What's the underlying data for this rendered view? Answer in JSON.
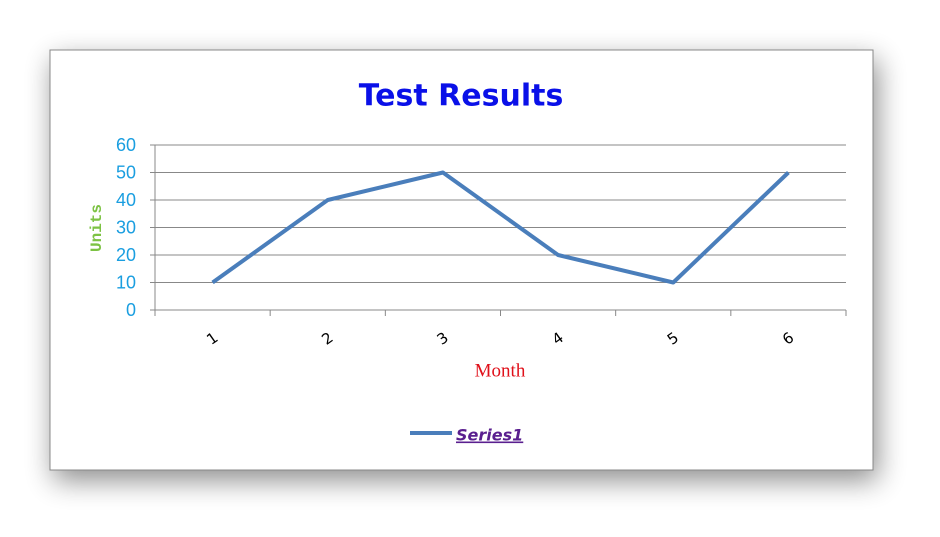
{
  "chart_data": {
    "type": "line",
    "title": "Test Results",
    "x_label": "Month",
    "y_label": "Units",
    "categories": [
      "1",
      "2",
      "3",
      "4",
      "5",
      "6"
    ],
    "series": [
      {
        "name": "Series1",
        "color": "#4a7ebb",
        "values": [
          10,
          40,
          50,
          20,
          10,
          50
        ]
      }
    ],
    "ylim": [
      0,
      60
    ],
    "yticks": [
      0,
      10,
      20,
      30,
      40,
      50,
      60
    ],
    "grid": true,
    "legend": "bottom"
  }
}
